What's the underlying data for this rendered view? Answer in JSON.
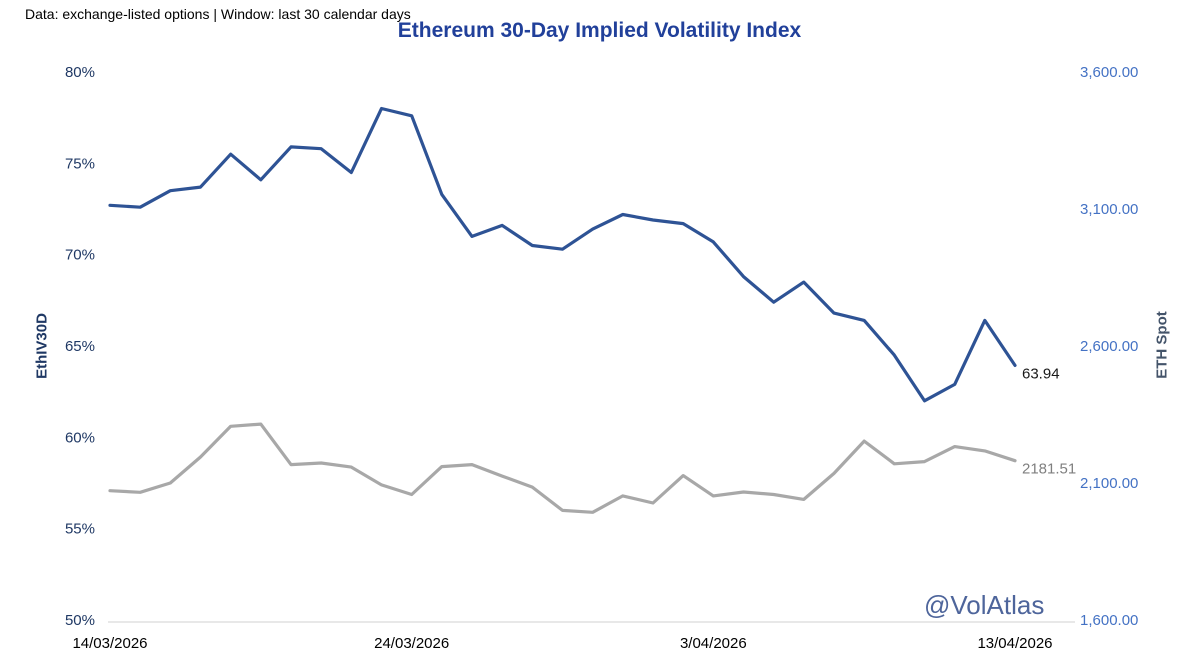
{
  "header": {
    "note": "Data: exchange-listed options | Window: last 30 calendar days",
    "title": "Ethereum 30-Day Implied Volatility Index",
    "title_color": "#21409A"
  },
  "watermark": {
    "text": "@VolAtlas",
    "color": "#4E659B"
  },
  "chart_data": {
    "type": "line",
    "title": "Ethereum 30-Day Implied Volatility Index",
    "n_points": 31,
    "grid": false,
    "legend": "none",
    "axis_line_color": "#D9D9D9",
    "x_axis": {
      "color": "#000000",
      "tick_positions": [
        0,
        10,
        20,
        30
      ],
      "tick_labels": [
        "14/03/2026",
        "24/03/2026",
        "3/04/2026",
        "13/04/2026"
      ]
    },
    "left_axis": {
      "label": "EthIV30D",
      "min": 50,
      "max": 80,
      "unit": "%",
      "color": "#1F3864",
      "tick_values": [
        80,
        75,
        70,
        65,
        60,
        55,
        50
      ],
      "tick_labels": [
        "80%",
        "75%",
        "70%",
        "65%",
        "60%",
        "55%",
        "50%"
      ]
    },
    "right_axis": {
      "label": "ETH Spot",
      "min": 1600,
      "max": 3600,
      "color": "#4472C4",
      "label_color": "#44546A",
      "tick_values": [
        3600,
        3100,
        2600,
        2100,
        1600
      ],
      "tick_labels": [
        "3,600.00",
        "3,100.00",
        "2,600.00",
        "2,100.00",
        "1,600.00"
      ]
    },
    "series": [
      {
        "name": "EthIV30D",
        "axis": "left",
        "color": "#2E5395",
        "end_label": "63.94",
        "end_label_color": "#1A1A1A",
        "values": [
          72.7,
          72.6,
          73.5,
          73.7,
          75.5,
          74.1,
          75.9,
          75.8,
          74.5,
          78.0,
          77.6,
          73.3,
          71.0,
          71.6,
          70.5,
          70.3,
          71.4,
          72.2,
          71.9,
          71.7,
          70.7,
          68.8,
          67.4,
          68.5,
          66.8,
          66.4,
          64.5,
          62.0,
          62.9,
          66.4,
          63.94
        ]
      },
      {
        "name": "ETH Spot",
        "axis": "right",
        "color": "#A8A8A8",
        "end_label": "2181.51",
        "end_label_color": "#7F7F7F",
        "values": [
          2072,
          2066,
          2100,
          2195,
          2307,
          2315,
          2167,
          2173,
          2158,
          2093,
          2058,
          2160,
          2167,
          2125,
          2085,
          2000,
          1993,
          2053,
          2027,
          2127,
          2053,
          2067,
          2058,
          2040,
          2135,
          2253,
          2170,
          2178,
          2233,
          2217,
          2181.51
        ]
      }
    ]
  }
}
